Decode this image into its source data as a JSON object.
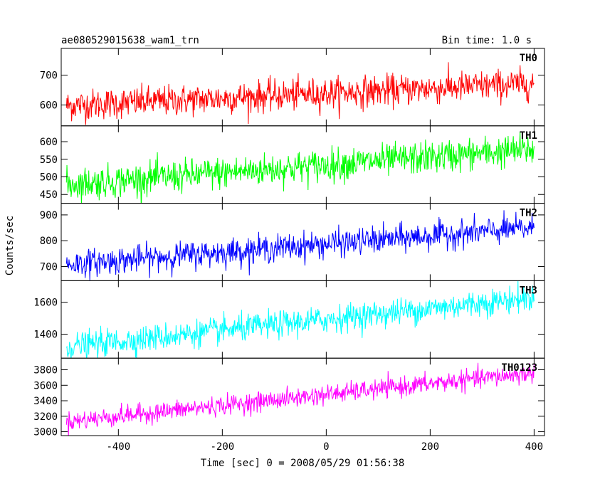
{
  "header": {
    "title": "ae080529015638_wam1_trn",
    "bin_time": "Bin time: 1.0 s"
  },
  "chart_data": {
    "type": "line",
    "xlabel": "Time [sec] 0 = 2008/05/29 01:56:38",
    "ylabel": "Counts/sec",
    "xlim": [
      -510,
      420
    ],
    "x_ticks": [
      -400,
      -200,
      0,
      200,
      400
    ],
    "x_range": [
      -500,
      400
    ],
    "bin_time": 1.0,
    "panels": [
      {
        "name": "TH0",
        "color": "#ff0000",
        "ylim": [
          530,
          790
        ],
        "y_ticks": [
          600,
          700
        ],
        "start_mean": 598,
        "end_mean": 672,
        "noise_sd": 26
      },
      {
        "name": "TH1",
        "color": "#00ff00",
        "ylim": [
          425,
          645
        ],
        "y_ticks": [
          450,
          500,
          550,
          600
        ],
        "start_mean": 478,
        "end_mean": 578,
        "noise_sd": 23
      },
      {
        "name": "TH2",
        "color": "#0000ff",
        "ylim": [
          645,
          945
        ],
        "y_ticks": [
          700,
          800,
          900
        ],
        "start_mean": 708,
        "end_mean": 850,
        "noise_sd": 26
      },
      {
        "name": "TH3",
        "color": "#00ffff",
        "ylim": [
          1250,
          1735
        ],
        "y_ticks": [
          1400,
          1600
        ],
        "start_mean": 1320,
        "end_mean": 1630,
        "noise_sd": 42
      },
      {
        "name": "TH0123",
        "color": "#ff00ff",
        "ylim": [
          2950,
          3950
        ],
        "y_ticks": [
          3000,
          3200,
          3400,
          3600,
          3800
        ],
        "start_mean": 3130,
        "end_mean": 3760,
        "noise_sd": 62
      }
    ]
  }
}
